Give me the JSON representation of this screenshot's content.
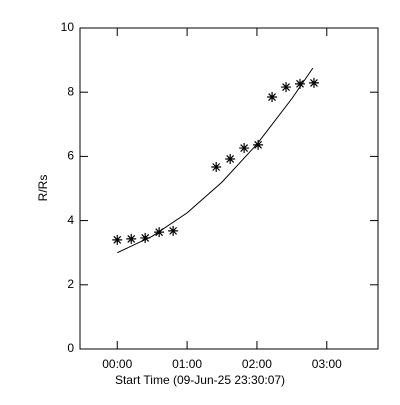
{
  "chart_data": {
    "type": "scatter",
    "xlabel": "Start Time (09-Jun-25 23:30:07)",
    "ylabel": "R/Rs",
    "x": [
      0,
      12,
      24,
      36,
      48,
      85,
      97,
      109,
      121,
      133,
      145,
      157,
      169
    ],
    "values": [
      3.4,
      3.43,
      3.46,
      3.64,
      3.68,
      5.67,
      5.92,
      6.26,
      6.36,
      7.85,
      8.16,
      8.26,
      8.29
    ],
    "fit": {
      "x": [
        0,
        30,
        60,
        90,
        120,
        150,
        168
      ],
      "values": [
        3.0,
        3.51,
        4.24,
        5.2,
        6.38,
        7.8,
        8.75
      ]
    },
    "color": "#000000",
    "xlim": [
      -32,
      224
    ],
    "ylim": [
      0,
      10
    ],
    "xticks": [
      {
        "value": 0,
        "label": "00:00"
      },
      {
        "value": 60,
        "label": "01:00"
      },
      {
        "value": 120,
        "label": "02:00"
      },
      {
        "value": 180,
        "label": "03:00"
      }
    ],
    "yticks": [
      0,
      2,
      4,
      6,
      8,
      10
    ]
  }
}
